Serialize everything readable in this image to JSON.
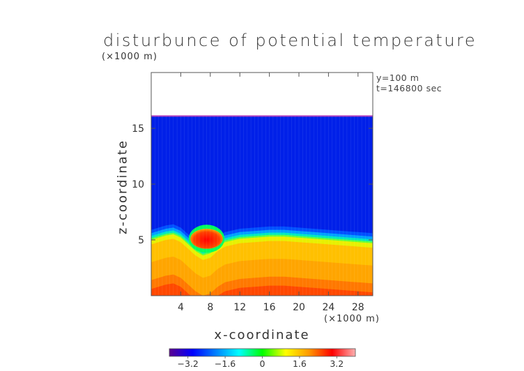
{
  "chart_data": {
    "type": "heatmap",
    "title": "disturbunce of potential temperature",
    "xlabel": "x-coordinate",
    "ylabel": "z-coordinate",
    "x_unit": "(×1000 m)",
    "z_unit": "(×1000 m)",
    "info": [
      "y=100 m",
      "t=146800 sec"
    ],
    "xlim": [
      0,
      30
    ],
    "zlim": [
      0,
      20
    ],
    "x_ticks": [
      4,
      8,
      12,
      16,
      20,
      24,
      28
    ],
    "x_tick_labels": [
      "4",
      "8",
      "12",
      "16",
      "20",
      "24",
      "28"
    ],
    "z_ticks": [
      5,
      10,
      15
    ],
    "z_tick_labels": [
      "5",
      "10",
      "15"
    ],
    "colorbar": {
      "range": [
        -4,
        4
      ],
      "ticks": [
        -3.2,
        -1.6,
        0,
        1.6,
        3.2
      ],
      "tick_labels": [
        "−3.2",
        "−1.6",
        "0",
        "1.6",
        "3.2"
      ],
      "colors": [
        "#5a0090",
        "#0000ff",
        "#0080ff",
        "#00ffff",
        "#00ff00",
        "#ffff00",
        "#ff9900",
        "#ff0000",
        "#ffb0b0"
      ]
    },
    "domain_top_z": 16.1,
    "layers": [
      {
        "name": "upper",
        "value": -2.6
      },
      {
        "name": "lower",
        "value": 2.6
      }
    ],
    "interface_profile": {
      "x": [
        0,
        2,
        3,
        4,
        5,
        6,
        7,
        8,
        9,
        10,
        12,
        14,
        16,
        18,
        20,
        22,
        24,
        26,
        28,
        30
      ],
      "z": [
        5.0,
        5.4,
        5.5,
        5.2,
        4.6,
        4.0,
        3.6,
        3.8,
        4.4,
        4.8,
        5.1,
        5.2,
        5.3,
        5.3,
        5.2,
        5.1,
        5.0,
        4.9,
        4.8,
        4.7
      ]
    },
    "warm_bubble": {
      "x_center": 7.5,
      "z_center": 5.1,
      "x_halfwidth": 2.2,
      "z_halfheight": 0.9,
      "value": 3.6
    }
  }
}
